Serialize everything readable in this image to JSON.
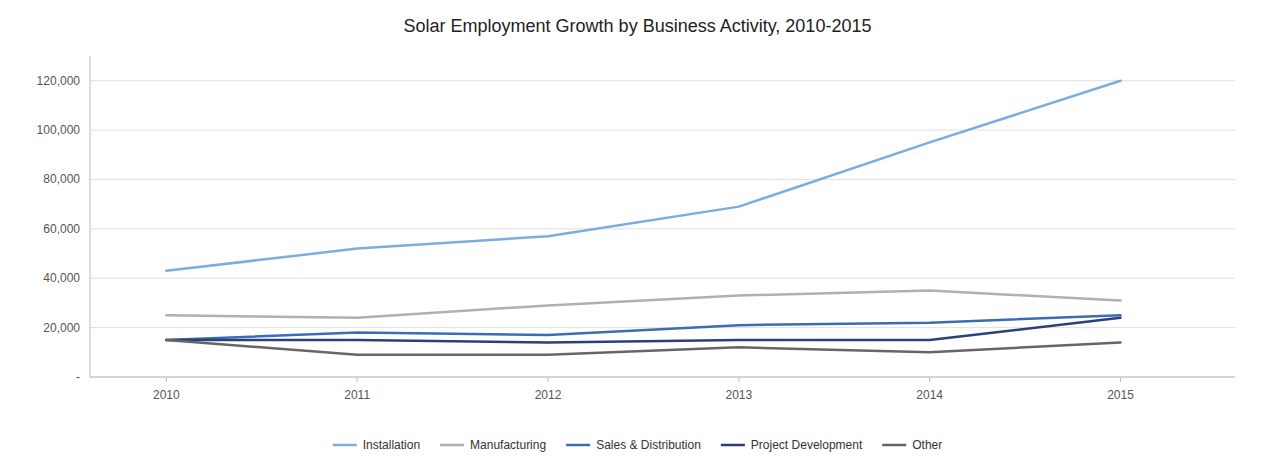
{
  "chart_data": {
    "type": "line",
    "title": "Solar Employment Growth by Business Activity, 2010-2015",
    "x": [
      2010,
      2011,
      2012,
      2013,
      2014,
      2015
    ],
    "series": [
      {
        "name": "Installation",
        "color": "#7aade0",
        "values": [
          43000,
          52000,
          57000,
          69000,
          95000,
          120000
        ]
      },
      {
        "name": "Manufacturing",
        "color": "#b0b0b0",
        "values": [
          25000,
          24000,
          29000,
          33000,
          35000,
          31000
        ]
      },
      {
        "name": "Sales & Distribution",
        "color": "#3a6db5",
        "values": [
          15000,
          18000,
          17000,
          21000,
          22000,
          25000
        ]
      },
      {
        "name": "Project Development",
        "color": "#2c3f7a",
        "values": [
          15000,
          15000,
          14000,
          15000,
          15000,
          24000
        ]
      },
      {
        "name": "Other",
        "color": "#666666",
        "values": [
          15000,
          9000,
          9000,
          12000,
          10000,
          14000
        ]
      }
    ],
    "xlim": [
      2009.6,
      2015.6
    ],
    "xticks": [
      2010,
      2011,
      2012,
      2013,
      2014,
      2015
    ],
    "ylim": [
      0,
      130000
    ],
    "yticks": [
      {
        "value": 0,
        "label": "-"
      },
      {
        "value": 20000,
        "label": "20,000"
      },
      {
        "value": 40000,
        "label": "40,000"
      },
      {
        "value": 60000,
        "label": "60,000"
      },
      {
        "value": 80000,
        "label": "80,000"
      },
      {
        "value": 100000,
        "label": "100,000"
      },
      {
        "value": 120000,
        "label": "120,000"
      }
    ],
    "grid": true,
    "legend": "bottom"
  }
}
